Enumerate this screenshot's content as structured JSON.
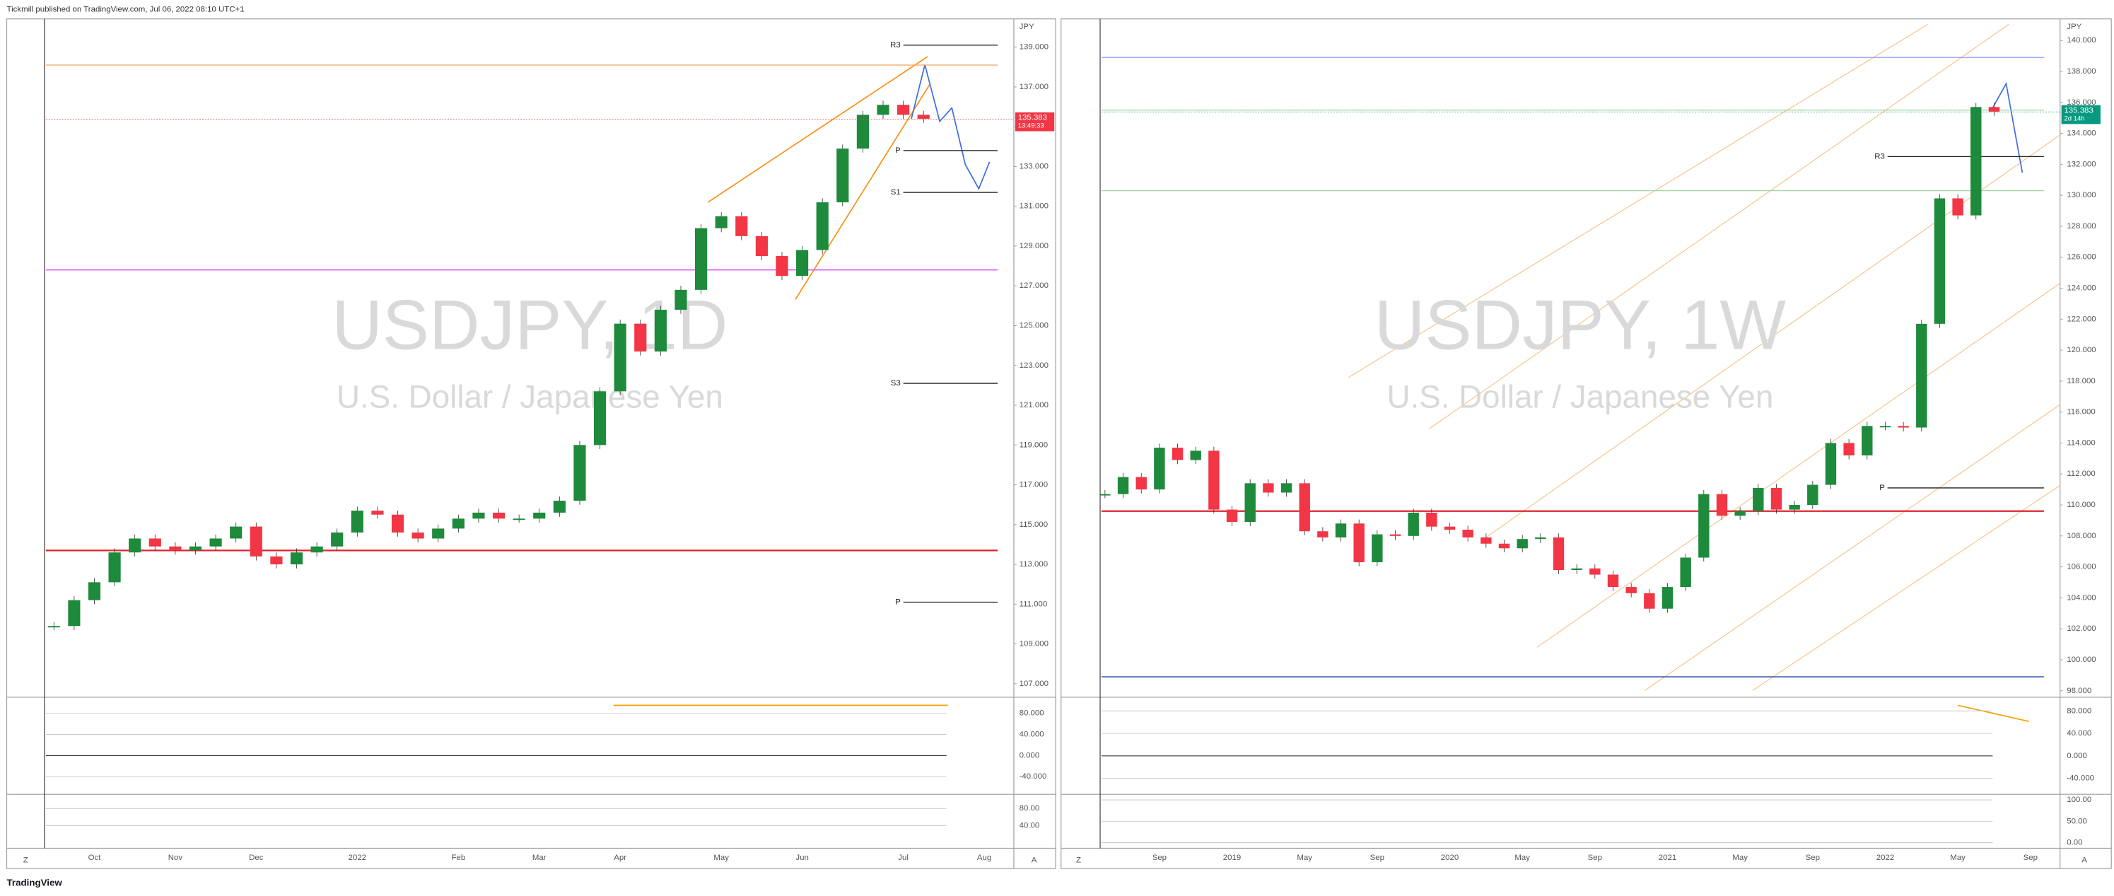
{
  "header": "Tickmill published on TradingView.com, Jul 06, 2022 08:10 UTC+1",
  "footer_brand": "TradingView",
  "chart_data": [
    {
      "type": "candlestick",
      "title": "USDJPY, 1D",
      "subtitle": "U.S. Dollar / Japanese Yen",
      "currency": "JPY",
      "categories": [
        null,
        null,
        "Oct",
        null,
        null,
        null,
        "Nov",
        null,
        null,
        null,
        "Dec",
        null,
        null,
        null,
        null,
        "2022",
        null,
        null,
        null,
        null,
        "Feb",
        null,
        null,
        null,
        "Mar",
        null,
        null,
        null,
        "Apr",
        null,
        null,
        null,
        null,
        "May",
        null,
        null,
        null,
        "Jun",
        null,
        null,
        null,
        null,
        "Jul",
        null,
        null,
        null,
        "Aug"
      ],
      "values": [
        109.9,
        111.2,
        112.1,
        113.6,
        114.3,
        113.9,
        113.7,
        113.9,
        114.3,
        114.9,
        113.4,
        113.0,
        113.6,
        113.9,
        114.6,
        115.7,
        115.5,
        114.6,
        114.3,
        114.8,
        115.3,
        115.6,
        115.3,
        115.3,
        115.6,
        116.2,
        119.0,
        121.7,
        125.1,
        123.7,
        125.8,
        126.8,
        129.9,
        130.5,
        129.5,
        128.5,
        127.5,
        128.8,
        131.2,
        133.9,
        135.6,
        136.1,
        135.6,
        135.4,
        null,
        null,
        null
      ],
      "up_color": "#1e8a3c",
      "down_color": "#f23645",
      "ylim": [
        106.39,
        140.42
      ],
      "yticks": [
        {
          "value": 107,
          "label": "107.000"
        },
        {
          "value": 109,
          "label": "109.000"
        },
        {
          "value": 111,
          "label": "111.000"
        },
        {
          "value": 113,
          "label": "113.000"
        },
        {
          "value": 115,
          "label": "115.000"
        },
        {
          "value": 117,
          "label": "117.000"
        },
        {
          "value": 119,
          "label": "119.000"
        },
        {
          "value": 121,
          "label": "121.000"
        },
        {
          "value": 123,
          "label": "123.000"
        },
        {
          "value": 125,
          "label": "125.000"
        },
        {
          "value": 127,
          "label": "127.000"
        },
        {
          "value": 129,
          "label": "129.000"
        },
        {
          "value": 131,
          "label": "131.000"
        },
        {
          "value": 133,
          "label": "133.000"
        },
        {
          "value": 135,
          "label": "135.000"
        },
        {
          "value": 137,
          "label": "137.000"
        },
        {
          "value": 139,
          "label": "139.000"
        }
      ],
      "levels": [
        {
          "label": "R3",
          "value": 139.1,
          "color": "#222222"
        },
        {
          "label": "P",
          "value": 133.8,
          "color": "#222222"
        },
        {
          "label": "S1",
          "value": 131.7,
          "color": "#222222"
        },
        {
          "label": "S3",
          "value": 122.1,
          "color": "#222222"
        },
        {
          "label": "P",
          "value": 111.1,
          "color": "#222222"
        },
        {
          "value": 113.7,
          "color": "#e0242e"
        },
        {
          "value": 138.1,
          "color": "#f7a35c"
        },
        {
          "value": 127.8,
          "color": "#e040fb"
        }
      ],
      "last_price": 135.383,
      "last_price_color": "#f23645",
      "price_timer": "13:49:33",
      "scale_buttons": [
        "Z",
        "A"
      ],
      "indicators": [
        {
          "ylim": [
            -71,
            108
          ],
          "yticks": [
            {
              "value": 80,
              "label": "80.000"
            },
            {
              "value": 40,
              "label": "40.000"
            },
            {
              "value": 0,
              "label": "0.000"
            },
            {
              "value": -40,
              "label": "-40.000"
            }
          ]
        },
        {
          "ylim": [
            -10,
            110
          ],
          "yticks": [
            {
              "value": 80,
              "label": "80.00"
            },
            {
              "value": 40,
              "label": "40.00"
            }
          ]
        }
      ]
    },
    {
      "type": "candlestick",
      "title": "USDJPY, 1W",
      "subtitle": "U.S. Dollar / Japanese Yen",
      "currency": "JPY",
      "categories": [
        null,
        null,
        null,
        "Sep",
        null,
        null,
        null,
        "2019",
        null,
        null,
        null,
        "May",
        null,
        null,
        null,
        "Sep",
        null,
        null,
        null,
        "2020",
        null,
        null,
        null,
        "May",
        null,
        null,
        null,
        "Sep",
        null,
        null,
        null,
        "2021",
        null,
        null,
        null,
        "May",
        null,
        null,
        null,
        "Sep",
        null,
        null,
        null,
        "2022",
        null,
        null,
        null,
        "May",
        null,
        null,
        null,
        "Sep"
      ],
      "values": [
        110.7,
        111.8,
        111.0,
        113.7,
        112.9,
        113.5,
        109.7,
        108.9,
        111.4,
        110.8,
        111.4,
        108.3,
        107.9,
        108.8,
        106.3,
        108.1,
        108.0,
        109.5,
        108.6,
        108.4,
        107.9,
        107.5,
        107.2,
        107.8,
        107.9,
        105.8,
        105.9,
        105.5,
        104.7,
        104.3,
        103.3,
        104.7,
        106.6,
        110.7,
        109.3,
        109.6,
        111.1,
        109.7,
        110.0,
        111.3,
        114.0,
        113.2,
        115.1,
        115.1,
        115.0,
        121.7,
        129.8,
        128.7,
        135.7,
        135.4,
        null,
        null
      ],
      "up_color": "#1e8a3c",
      "down_color": "#f23645",
      "ylim": [
        97.67,
        141.39
      ],
      "yticks": [
        {
          "value": 98,
          "label": "98.000"
        },
        {
          "value": 100,
          "label": "100.000"
        },
        {
          "value": 102,
          "label": "102.000"
        },
        {
          "value": 104,
          "label": "104.000"
        },
        {
          "value": 106,
          "label": "106.000"
        },
        {
          "value": 108,
          "label": "108.000"
        },
        {
          "value": 110,
          "label": "110.000"
        },
        {
          "value": 112,
          "label": "112.000"
        },
        {
          "value": 114,
          "label": "114.000"
        },
        {
          "value": 116,
          "label": "116.000"
        },
        {
          "value": 118,
          "label": "118.000"
        },
        {
          "value": 120,
          "label": "120.000"
        },
        {
          "value": 122,
          "label": "122.000"
        },
        {
          "value": 124,
          "label": "124.000"
        },
        {
          "value": 126,
          "label": "126.000"
        },
        {
          "value": 128,
          "label": "128.000"
        },
        {
          "value": 130,
          "label": "130.000"
        },
        {
          "value": 132,
          "label": "132.000"
        },
        {
          "value": 134,
          "label": "134.000"
        },
        {
          "value": 136,
          "label": "136.000"
        },
        {
          "value": 138,
          "label": "138.000"
        },
        {
          "value": 140,
          "label": "140.000"
        }
      ],
      "levels": [
        {
          "label": "R3",
          "value": 132.5,
          "color": "#222222"
        },
        {
          "label": "P",
          "value": 111.1,
          "color": "#222222"
        },
        {
          "value": 109.6,
          "color": "#e0242e"
        },
        {
          "value": 138.9,
          "color": "#8c9eff"
        },
        {
          "value": 98.9,
          "color": "#1a3d9c"
        },
        {
          "value": 135.5,
          "color": "#a5d6a7"
        },
        {
          "value": 130.3,
          "color": "#a5d6a7"
        }
      ],
      "last_price": 135.383,
      "last_price_color": "#089981",
      "price_timer": "2d 14h",
      "scale_buttons": [
        "Z",
        "A"
      ],
      "indicators": [
        {
          "ylim": [
            -66,
            102
          ],
          "yticks": [
            {
              "value": 80,
              "label": "80.000"
            },
            {
              "value": 40,
              "label": "40.000"
            },
            {
              "value": 0,
              "label": "0.000"
            },
            {
              "value": -40,
              "label": "-40.000"
            }
          ]
        },
        {
          "ylim": [
            -10,
            110
          ],
          "yticks": [
            {
              "value": 100,
              "label": "100.00"
            },
            {
              "value": 50,
              "label": "50.00"
            },
            {
              "value": 0,
              "label": "0.00"
            }
          ]
        }
      ]
    }
  ]
}
